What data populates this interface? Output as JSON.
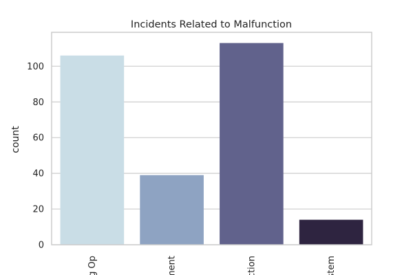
{
  "chart_data": {
    "type": "bar",
    "title": "Incidents Related to Malfunction",
    "xlabel": "",
    "ylabel": "count",
    "categories_visible": [
      "g Op",
      "ment",
      "ction",
      "stem"
    ],
    "values": [
      106,
      39,
      113,
      14
    ],
    "colors": [
      "#c9dde6",
      "#8ea3c2",
      "#61628c",
      "#2e2440"
    ],
    "ylim": [
      0,
      119
    ],
    "yticks": [
      0,
      20,
      40,
      60,
      80,
      100
    ],
    "grid": true,
    "legend": "none"
  }
}
